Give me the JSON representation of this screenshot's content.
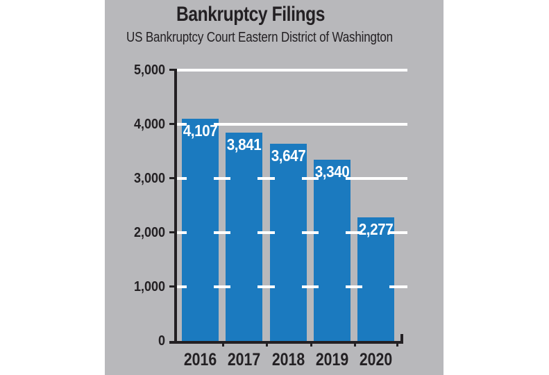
{
  "chart": {
    "title": "Bankruptcy Filings",
    "subtitle": "US Bankruptcy Court Eastern District of Washington"
  },
  "colors": {
    "page_background": "#ffffff",
    "panel_background": "#b8b8bb",
    "bar": "#1b7abf",
    "gridline": "#ffffff",
    "axis": "#232023",
    "text": "#232023",
    "value_label": "#ffffff"
  },
  "chart_data": {
    "type": "bar",
    "title": "Bankruptcy Filings",
    "subtitle": "US Bankruptcy Court Eastern District of Washington",
    "categories": [
      "2016",
      "2017",
      "2018",
      "2019",
      "2020"
    ],
    "values": [
      4107,
      3841,
      3647,
      3340,
      2277
    ],
    "value_labels": [
      "4,107",
      "3,841",
      "3,647",
      "3,340",
      "2,277"
    ],
    "xlabel": "",
    "ylabel": "",
    "ylim": [
      0,
      5000
    ],
    "y_ticks": [
      {
        "label": "5,000",
        "value": 5000
      },
      {
        "label": "4,000",
        "value": 4000
      },
      {
        "label": "3,000",
        "value": 3000
      },
      {
        "label": "2,000",
        "value": 2000
      },
      {
        "label": "1,000",
        "value": 1000
      },
      {
        "label": "0",
        "value": 0
      }
    ],
    "grid": true,
    "legend": false,
    "bar_color": "#1b7abf",
    "grid_color": "#ffffff",
    "axis_color": "#232023",
    "value_label_color": "#ffffff"
  }
}
